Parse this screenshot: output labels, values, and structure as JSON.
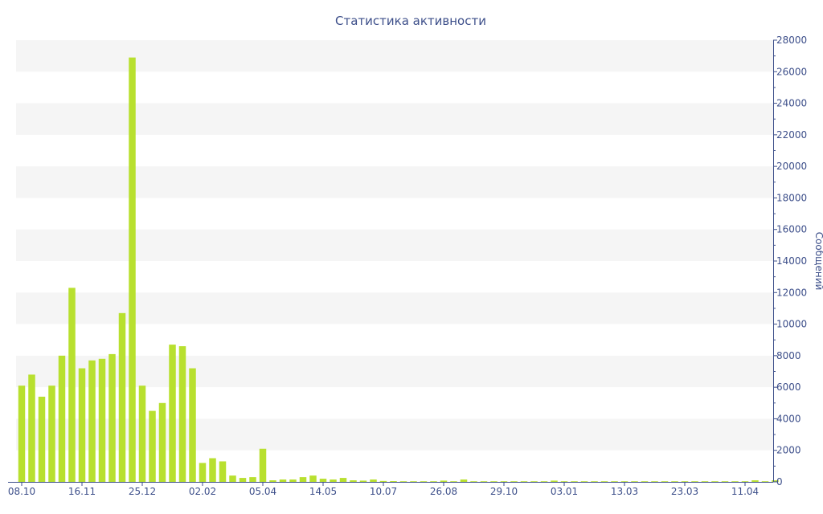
{
  "chart_data": {
    "type": "bar",
    "title": "Статистика активности",
    "ylabel": "Сообщений",
    "xlabel": "",
    "ylim": [
      0,
      28000
    ],
    "y_ticks": [
      0,
      2000,
      4000,
      6000,
      8000,
      10000,
      12000,
      14000,
      16000,
      18000,
      20000,
      22000,
      24000,
      26000,
      28000
    ],
    "y_axis_side": "right",
    "grid": "alternating horizontal bands",
    "x_tick_labels": [
      {
        "label": "08.10",
        "index": 0
      },
      {
        "label": "16.11",
        "index": 6
      },
      {
        "label": "25.12",
        "index": 12
      },
      {
        "label": "02.02",
        "index": 18
      },
      {
        "label": "05.04",
        "index": 24
      },
      {
        "label": "14.05",
        "index": 30
      },
      {
        "label": "10.07",
        "index": 36
      },
      {
        "label": "26.08",
        "index": 42
      },
      {
        "label": "29.10",
        "index": 48
      },
      {
        "label": "03.01",
        "index": 54
      },
      {
        "label": "13.03",
        "index": 60
      },
      {
        "label": "23.03",
        "index": 66
      },
      {
        "label": "11.04",
        "index": 72
      }
    ],
    "values": [
      6100,
      6800,
      5400,
      6100,
      8000,
      12300,
      7200,
      7700,
      7800,
      8100,
      10700,
      26900,
      6100,
      4500,
      5000,
      8700,
      8600,
      7200,
      1200,
      1500,
      1300,
      400,
      250,
      300,
      2100,
      100,
      150,
      150,
      300,
      400,
      200,
      150,
      250,
      100,
      80,
      150,
      60,
      50,
      40,
      40,
      40,
      40,
      80,
      40,
      150,
      40,
      40,
      40,
      40,
      40,
      40,
      40,
      40,
      80,
      40,
      40,
      40,
      40,
      40,
      40,
      40,
      40,
      40,
      40,
      40,
      40,
      40,
      40,
      40,
      40,
      40,
      40,
      40,
      100,
      40,
      100
    ],
    "colors": {
      "bar": "#b8e02f",
      "band": "#f5f5f5",
      "axis": "#3d4f8a"
    }
  }
}
